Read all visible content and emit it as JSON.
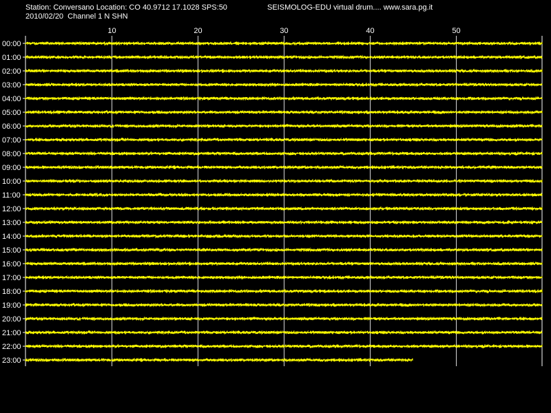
{
  "header": {
    "station": "Station: Conversano Location: CO 40.9712 17.1028 SPS:50",
    "title": "SEISMOLOG-EDU virtual drum.... www.sara.pg.it",
    "date_channel": "2010/02/20  Channel 1 N SHN"
  },
  "colors": {
    "background": "#000000",
    "trace": "#ffff00",
    "grid": "#ffffff",
    "text": "#ffffff"
  },
  "chart_data": {
    "type": "line",
    "xlabel": "",
    "ylabel": "",
    "xlim": [
      0,
      60
    ],
    "x_ticks": [
      10,
      20,
      30,
      40,
      50
    ],
    "grid": true,
    "hour_labels": [
      "00:00",
      "01:00",
      "02:00",
      "03:00",
      "04:00",
      "05:00",
      "06:00",
      "07:00",
      "08:00",
      "09:00",
      "10:00",
      "11:00",
      "12:00",
      "13:00",
      "14:00",
      "15:00",
      "16:00",
      "17:00",
      "18:00",
      "19:00",
      "20:00",
      "21:00",
      "22:00",
      "23:00"
    ],
    "trace_end_minute": [
      60,
      60,
      60,
      60,
      60,
      60,
      60,
      60,
      60,
      60,
      60,
      60,
      60,
      60,
      60,
      60,
      60,
      60,
      60,
      60,
      60,
      60,
      60,
      45
    ]
  }
}
